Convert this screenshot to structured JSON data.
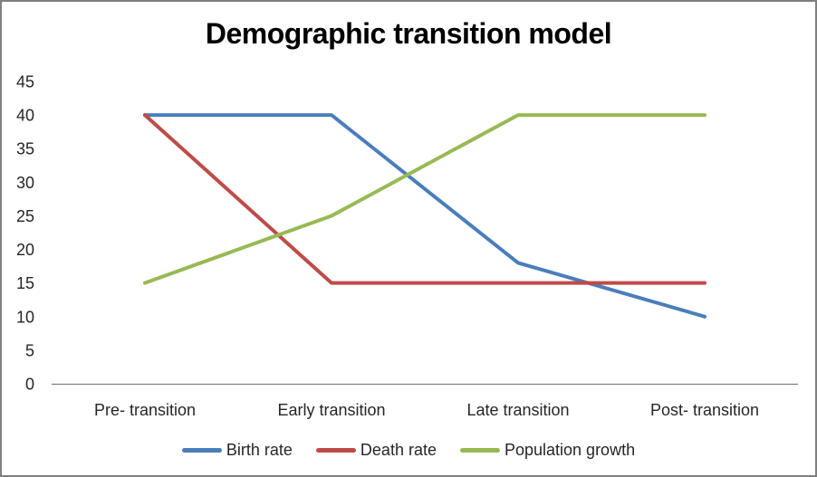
{
  "chart_data": {
    "type": "line",
    "title": "Demographic transition model",
    "categories": [
      "Pre- transition",
      "Early transition",
      "Late transition",
      "Post- transition"
    ],
    "series": [
      {
        "name": "Birth rate",
        "color": "#4A7EBB",
        "values": [
          40,
          40,
          18,
          10
        ]
      },
      {
        "name": "Death rate",
        "color": "#BE4B48",
        "values": [
          40,
          15,
          15,
          15
        ]
      },
      {
        "name": "Population growth",
        "color": "#98B954",
        "values": [
          15,
          25,
          40,
          40
        ]
      }
    ],
    "y_axis": {
      "min": 0,
      "max": 45,
      "step": 5,
      "ticks": [
        45,
        40,
        35,
        30,
        25,
        20,
        15,
        10,
        5,
        0
      ]
    },
    "xlabel": "",
    "ylabel": "",
    "grid": false,
    "legend_position": "bottom",
    "axis_color": "#7F7F7F",
    "text_color": "#262626",
    "frame_border_color": "#808080",
    "background": "#FFFFFF"
  }
}
